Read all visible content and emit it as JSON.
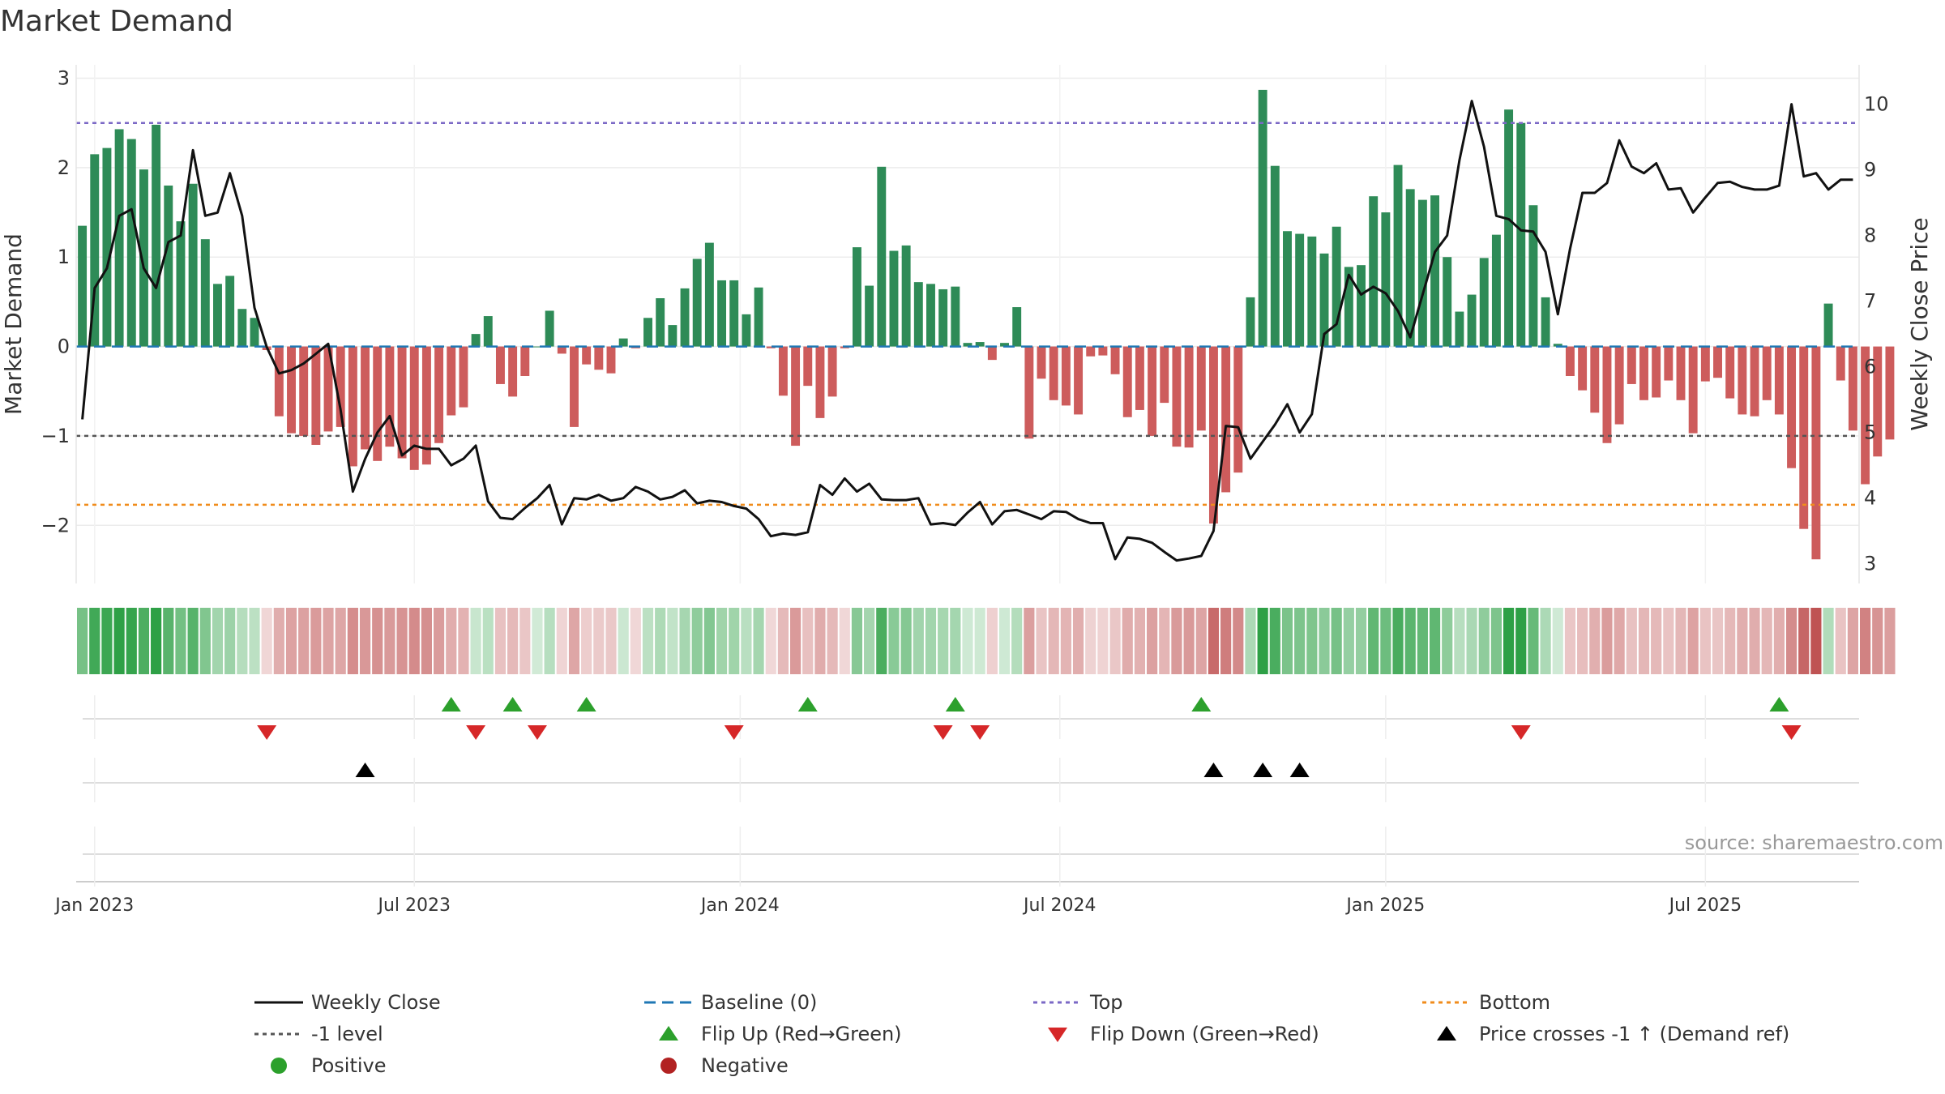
{
  "chart_data": {
    "type": "bar",
    "title": "Market Demand",
    "ylabel_left": "Market Demand",
    "ylabel_right": "Weekly Close Price",
    "source": "source: sharemaestro.com",
    "ylim_left": [
      -2.65,
      3.15
    ],
    "ylim_right": [
      2.7,
      10.6
    ],
    "yticks_left": [
      3,
      2,
      1,
      0,
      -1,
      -2
    ],
    "yticks_left_labels": [
      "3",
      "2",
      "1",
      "0",
      "−1",
      "−2"
    ],
    "yticks_right": [
      10,
      9,
      8,
      7,
      6,
      5,
      4,
      3
    ],
    "yticks_right_labels": [
      "10",
      "9",
      "8",
      "7",
      "6",
      "5",
      "4",
      "3"
    ],
    "x_ticks": [
      {
        "label": "Jan 2023",
        "week": 1.5
      },
      {
        "label": "Jul 2023",
        "week": 27.5
      },
      {
        "label": "Jan 2024",
        "week": 54
      },
      {
        "label": "Jul 2024",
        "week": 80
      },
      {
        "label": "Jan 2025",
        "week": 106.5
      },
      {
        "label": "Jul 2025",
        "week": 132.5
      }
    ],
    "x_range_weeks": [
      0,
      145
    ],
    "reference_lines": {
      "top": 2.5,
      "minus_one": -1,
      "bottom": -1.77,
      "baseline": 0
    },
    "demand": [
      1.35,
      2.15,
      2.22,
      2.43,
      2.32,
      1.98,
      2.48,
      1.8,
      1.4,
      1.82,
      1.2,
      0.7,
      0.79,
      0.42,
      0.32,
      -0.04,
      -0.78,
      -0.97,
      -1.0,
      -1.1,
      -0.95,
      -0.9,
      -1.34,
      -1.15,
      -1.28,
      -1.12,
      -1.25,
      -1.38,
      -1.32,
      -1.08,
      -0.77,
      -0.68,
      0.14,
      0.34,
      -0.42,
      -0.56,
      -0.33,
      0.0,
      0.4,
      -0.08,
      -0.9,
      -0.2,
      -0.26,
      -0.3,
      0.09,
      -0.02,
      0.32,
      0.54,
      0.24,
      0.65,
      0.98,
      1.16,
      0.74,
      0.74,
      0.36,
      0.66,
      -0.02,
      -0.55,
      -1.11,
      -0.44,
      -0.8,
      -0.56,
      -0.02,
      1.11,
      0.68,
      2.01,
      1.07,
      1.13,
      0.72,
      0.7,
      0.64,
      0.67,
      0.04,
      0.05,
      -0.15,
      0.04,
      0.44,
      -1.03,
      -0.36,
      -0.6,
      -0.66,
      -0.76,
      -0.11,
      -0.1,
      -0.31,
      -0.79,
      -0.71,
      -1.0,
      -0.63,
      -1.12,
      -1.13,
      -0.94,
      -1.98,
      -1.63,
      -1.41,
      0.55,
      2.87,
      2.02,
      1.29,
      1.26,
      1.23,
      1.04,
      1.34,
      0.89,
      0.91,
      1.68,
      1.5,
      2.03,
      1.76,
      1.64,
      1.69,
      1.0,
      0.39,
      0.58,
      0.99,
      1.25,
      2.65,
      2.5,
      1.58,
      0.55,
      0.03,
      -0.33,
      -0.49,
      -0.74,
      -1.08,
      -0.87,
      -0.42,
      -0.6,
      -0.57,
      -0.38,
      -0.6,
      -0.97,
      -0.39,
      -0.35,
      -0.58,
      -0.76,
      -0.78,
      -0.6,
      -0.76,
      -1.36,
      -2.04,
      -2.38,
      0.48,
      -0.38,
      -0.94,
      -1.54,
      -1.23,
      -1.04
    ],
    "weekly_close": [
      5.2,
      7.2,
      7.5,
      8.3,
      8.4,
      7.5,
      7.2,
      7.9,
      8.0,
      9.3,
      8.3,
      8.35,
      8.95,
      8.3,
      6.9,
      6.3,
      5.9,
      5.95,
      6.05,
      6.2,
      6.35,
      5.35,
      4.1,
      4.6,
      5.0,
      5.25,
      4.65,
      4.8,
      4.75,
      4.75,
      4.5,
      4.6,
      4.8,
      3.95,
      3.7,
      3.68,
      3.85,
      4.0,
      4.2,
      3.6,
      4.0,
      3.98,
      4.05,
      3.96,
      4.0,
      4.17,
      4.1,
      3.98,
      4.02,
      4.12,
      3.92,
      3.96,
      3.94,
      3.88,
      3.84,
      3.68,
      3.42,
      3.46,
      3.44,
      3.48,
      4.2,
      4.05,
      4.3,
      4.1,
      4.22,
      3.98,
      3.97,
      3.97,
      4.0,
      3.6,
      3.62,
      3.59,
      3.78,
      3.94,
      3.6,
      3.8,
      3.82,
      3.75,
      3.68,
      3.8,
      3.79,
      3.68,
      3.62,
      3.62,
      3.07,
      3.4,
      3.38,
      3.32,
      3.18,
      3.05,
      3.08,
      3.12,
      3.5,
      5.1,
      5.08,
      4.6,
      4.86,
      5.12,
      5.43,
      5.0,
      5.28,
      6.5,
      6.65,
      7.4,
      7.1,
      7.22,
      7.12,
      6.85,
      6.45,
      7.1,
      7.75,
      8.0,
      9.15,
      10.05,
      9.35,
      8.3,
      8.25,
      8.08,
      8.06,
      7.75,
      6.8,
      7.8,
      8.65,
      8.65,
      8.8,
      9.45,
      9.05,
      8.95,
      9.1,
      8.7,
      8.72,
      8.35,
      8.58,
      8.8,
      8.82,
      8.74,
      8.7,
      8.7,
      8.76,
      10.0,
      8.9,
      8.95,
      8.7,
      8.85,
      8.85
    ],
    "flip_up_weeks": [
      30,
      35,
      41,
      59,
      71,
      91,
      138
    ],
    "flip_down_weeks": [
      15,
      32,
      37,
      53,
      70,
      73,
      117,
      139
    ],
    "price_crosses_weeks": [
      23,
      92,
      96,
      99
    ],
    "legend": [
      {
        "label": "Weekly Close",
        "color": "#111111",
        "marker": "line"
      },
      {
        "label": "Baseline (0)",
        "color": "#1f77b4",
        "marker": "dash"
      },
      {
        "label": "Top",
        "color": "#7b68c6",
        "marker": "dot"
      },
      {
        "label": "Bottom",
        "color": "#f08c1c",
        "marker": "dot"
      },
      {
        "label": "-1 level",
        "color": "#555555",
        "marker": "dot"
      },
      {
        "label": "Flip Up (Red→Green)",
        "color": "#2ca02c",
        "marker": "triangle-up"
      },
      {
        "label": "Flip Down (Green→Red)",
        "color": "#d62728",
        "marker": "triangle-down"
      },
      {
        "label": "Price crosses -1 ↑ (Demand ref)",
        "color": "#000000",
        "marker": "triangle-up"
      },
      {
        "label": "Positive",
        "color": "#2ca02c",
        "marker": "circle"
      },
      {
        "label": "Negative",
        "color": "#b22222",
        "marker": "circle"
      }
    ],
    "colors": {
      "positive_bar": "#2e8b57",
      "negative_bar": "#cd5c5c",
      "close_line": "#111111"
    }
  }
}
